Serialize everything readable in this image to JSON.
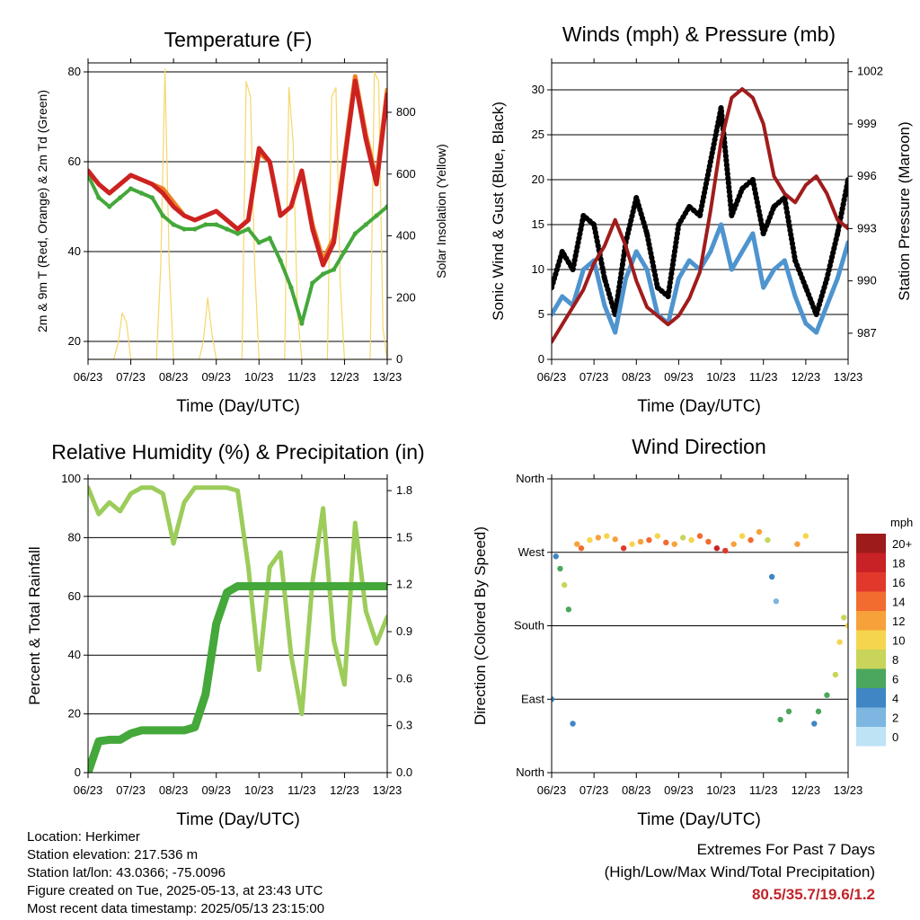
{
  "chart_data": [
    {
      "id": "temperature",
      "type": "line",
      "title": "Temperature (F)",
      "xlabel": "Time (Day/UTC)",
      "ylabel": "2m & 9m T (Red, Orange) & 2m Td (Green)",
      "ylabel_right": "Solar Insolation (Yellow)",
      "x_ticks": [
        "06/23",
        "07/23",
        "08/23",
        "09/23",
        "10/23",
        "11/23",
        "12/23",
        "13/23"
      ],
      "ylim": [
        16,
        82
      ],
      "yticks": [
        20,
        40,
        60,
        80
      ],
      "ylim_right": [
        0,
        960
      ],
      "yticks_right": [
        0,
        200,
        400,
        600,
        800
      ],
      "x": [
        6.0,
        6.25,
        6.5,
        6.75,
        7.0,
        7.25,
        7.5,
        7.75,
        8.0,
        8.25,
        8.5,
        8.75,
        9.0,
        9.25,
        9.5,
        9.75,
        10.0,
        10.25,
        10.5,
        10.75,
        11.0,
        11.25,
        11.5,
        11.75,
        12.0,
        12.25,
        12.5,
        12.75,
        13.0
      ],
      "series": [
        {
          "name": "2m T",
          "color": "#cc2222",
          "values": [
            58,
            55,
            53,
            55,
            57,
            56,
            55,
            53,
            50,
            48,
            47,
            48,
            49,
            47,
            45,
            47,
            63,
            60,
            48,
            50,
            58,
            45,
            37,
            42,
            60,
            78,
            65,
            55,
            75
          ]
        },
        {
          "name": "9m T",
          "color": "#f07f20",
          "values": [
            58,
            55,
            53,
            55,
            57,
            56,
            55,
            54,
            51,
            48,
            47,
            48,
            49,
            47,
            45,
            47,
            62,
            60,
            48,
            50,
            58,
            46,
            38,
            43,
            61,
            79,
            66,
            56,
            76
          ]
        },
        {
          "name": "2m Td",
          "color": "#44a83a",
          "values": [
            57,
            52,
            50,
            52,
            54,
            53,
            52,
            48,
            46,
            45,
            45,
            46,
            46,
            45,
            44,
            45,
            42,
            43,
            38,
            32,
            24,
            33,
            35,
            36,
            40,
            44,
            46,
            48,
            50
          ]
        },
        {
          "name": "Solar Insolation",
          "color": "#f5d76b",
          "axis": "right",
          "x": [
            6.0,
            6.1,
            6.2,
            6.3,
            6.4,
            6.5,
            6.6,
            6.7,
            6.8,
            6.9,
            7.0,
            7.1,
            7.2,
            7.3,
            7.4,
            7.5,
            7.6,
            7.7,
            7.8,
            7.9,
            8.0,
            8.1,
            8.2,
            8.3,
            8.4,
            8.5,
            8.6,
            8.7,
            8.8,
            8.9,
            9.0,
            9.1,
            9.2,
            9.3,
            9.4,
            9.5,
            9.6,
            9.7,
            9.8,
            9.9,
            10.0,
            10.1,
            10.2,
            10.3,
            10.4,
            10.5,
            10.6,
            10.7,
            10.8,
            10.9,
            11.0,
            11.1,
            11.2,
            11.3,
            11.4,
            11.5,
            11.6,
            11.7,
            11.8,
            11.9,
            12.0,
            12.1,
            12.2,
            12.3,
            12.4,
            12.5,
            12.6,
            12.7,
            12.8,
            12.9,
            13.0
          ],
          "values": [
            0,
            0,
            0,
            0,
            0,
            0,
            0,
            50,
            150,
            120,
            0,
            0,
            0,
            0,
            0,
            0,
            0,
            300,
            940,
            300,
            0,
            0,
            0,
            0,
            0,
            0,
            0,
            60,
            200,
            80,
            0,
            0,
            0,
            0,
            0,
            0,
            0,
            900,
            850,
            300,
            0,
            0,
            0,
            0,
            0,
            0,
            0,
            880,
            700,
            150,
            0,
            0,
            0,
            0,
            0,
            0,
            0,
            850,
            880,
            250,
            0,
            0,
            0,
            0,
            0,
            0,
            0,
            930,
            900,
            100,
            0
          ]
        }
      ]
    },
    {
      "id": "winds",
      "type": "line",
      "title": "Winds (mph) & Pressure (mb)",
      "xlabel": "Time (Day/UTC)",
      "ylabel": "Sonic Wind & Gust (Blue, Black)",
      "ylabel_right": "Station Pressure (Maroon)",
      "x_ticks": [
        "06/23",
        "07/23",
        "08/23",
        "09/23",
        "10/23",
        "11/23",
        "12/23",
        "13/23"
      ],
      "ylim": [
        0,
        33
      ],
      "yticks": [
        0,
        5,
        10,
        15,
        20,
        25,
        30
      ],
      "ylim_right": [
        985.5,
        1002.5
      ],
      "yticks_right": [
        987,
        990,
        993,
        996,
        999,
        1002
      ],
      "x": [
        6.0,
        6.25,
        6.5,
        6.75,
        7.0,
        7.25,
        7.5,
        7.75,
        8.0,
        8.25,
        8.5,
        8.75,
        9.0,
        9.25,
        9.5,
        9.75,
        10.0,
        10.25,
        10.5,
        10.75,
        11.0,
        11.25,
        11.5,
        11.75,
        12.0,
        12.25,
        12.5,
        12.75,
        13.0
      ],
      "series": [
        {
          "name": "Sonic Wind",
          "color": "#4e94cf",
          "values": [
            5,
            7,
            6,
            10,
            11,
            6,
            3,
            9,
            12,
            10,
            5,
            4,
            9,
            11,
            10,
            12,
            15,
            10,
            12,
            14,
            8,
            10,
            11,
            7,
            4,
            3,
            6,
            9,
            13
          ]
        },
        {
          "name": "Gust",
          "color": "#000000",
          "values": [
            8,
            12,
            10,
            16,
            15,
            9,
            5,
            13,
            18,
            14,
            8,
            7,
            15,
            17,
            16,
            22,
            28,
            16,
            19,
            20,
            14,
            17,
            18,
            11,
            8,
            5,
            9,
            14,
            20
          ]
        },
        {
          "name": "Station Pressure",
          "color": "#a01c1c",
          "axis": "right",
          "values": [
            986.5,
            987.5,
            988.5,
            989.5,
            991,
            992,
            993.5,
            992,
            990,
            988.5,
            988,
            987.5,
            988,
            989,
            990.5,
            994,
            998,
            1000.5,
            1001,
            1000.5,
            999,
            996,
            995,
            994.5,
            995.5,
            996,
            995,
            993.5,
            993
          ]
        }
      ]
    },
    {
      "id": "humidity",
      "type": "line",
      "title": "Relative Humidity (%) & Precipitation (in)",
      "xlabel": "Time (Day/UTC)",
      "ylabel": "Percent & Total Rainfall",
      "x_ticks": [
        "06/23",
        "07/23",
        "08/23",
        "09/23",
        "10/23",
        "11/23",
        "12/23",
        "13/23"
      ],
      "ylim": [
        0,
        100
      ],
      "yticks": [
        0,
        20,
        40,
        60,
        80,
        100
      ],
      "ylim_right": [
        0,
        1.875
      ],
      "yticks_right": [
        "0.0",
        "0.3",
        "0.6",
        "0.9",
        "1.2",
        "1.5",
        "1.8"
      ],
      "x": [
        6.0,
        6.25,
        6.5,
        6.75,
        7.0,
        7.25,
        7.5,
        7.75,
        8.0,
        8.25,
        8.5,
        8.75,
        9.0,
        9.25,
        9.5,
        9.75,
        10.0,
        10.25,
        10.5,
        10.75,
        11.0,
        11.25,
        11.5,
        11.75,
        12.0,
        12.25,
        12.5,
        12.75,
        13.0
      ],
      "series": [
        {
          "name": "Relative Humidity",
          "color": "#9ccc5a",
          "values": [
            97,
            88,
            92,
            89,
            95,
            97,
            97,
            95,
            78,
            92,
            97,
            97,
            97,
            97,
            96,
            70,
            35,
            70,
            75,
            40,
            20,
            65,
            90,
            45,
            30,
            85,
            55,
            44,
            53
          ]
        },
        {
          "name": "Total Precipitation",
          "color": "#44a83a",
          "axis": "right",
          "values": [
            0.0,
            0.2,
            0.21,
            0.21,
            0.25,
            0.27,
            0.27,
            0.27,
            0.27,
            0.27,
            0.29,
            0.5,
            0.95,
            1.15,
            1.19,
            1.19,
            1.19,
            1.19,
            1.19,
            1.19,
            1.19,
            1.19,
            1.19,
            1.19,
            1.19,
            1.19,
            1.19,
            1.19,
            1.19
          ]
        }
      ]
    },
    {
      "id": "direction",
      "type": "scatter",
      "title": "Wind Direction",
      "xlabel": "Time (Day/UTC)",
      "ylabel": "Direction (Colored By Speed)",
      "x_ticks": [
        "06/23",
        "07/23",
        "08/23",
        "09/23",
        "10/23",
        "11/23",
        "12/23",
        "13/23"
      ],
      "y_ticks": [
        "North",
        "East",
        "South",
        "West",
        "North"
      ],
      "ylim": [
        0,
        360
      ],
      "legend_title": "mph",
      "legend_labels": [
        "20+",
        "18",
        "16",
        "14",
        "12",
        "10",
        "8",
        "6",
        "4",
        "2",
        "0"
      ],
      "legend_colors": [
        "#9e1b1b",
        "#c82126",
        "#e0392c",
        "#f26b2f",
        "#f7a13b",
        "#f5d54d",
        "#c8d55a",
        "#4aa75d",
        "#3f87c4",
        "#7db6e0",
        "#bde3f5"
      ],
      "x": [
        6.0,
        6.1,
        6.2,
        6.3,
        6.4,
        6.5,
        6.6,
        6.7,
        6.9,
        7.1,
        7.3,
        7.5,
        7.7,
        7.9,
        8.1,
        8.3,
        8.5,
        8.7,
        8.9,
        9.1,
        9.3,
        9.5,
        9.7,
        9.9,
        10.1,
        10.3,
        10.5,
        10.7,
        10.9,
        11.1,
        11.2,
        11.3,
        11.4,
        11.6,
        11.8,
        12.0,
        12.2,
        12.3,
        12.5,
        12.7,
        12.8,
        12.9,
        13.0
      ],
      "values": [
        90,
        265,
        250,
        230,
        200,
        60,
        280,
        275,
        285,
        288,
        290,
        286,
        275,
        280,
        283,
        285,
        290,
        282,
        280,
        288,
        285,
        290,
        283,
        275,
        272,
        280,
        290,
        285,
        295,
        285,
        240,
        210,
        65,
        75,
        280,
        290,
        60,
        75,
        95,
        120,
        160,
        190,
        180
      ],
      "speeds": [
        3,
        4,
        6,
        8,
        6,
        3,
        12,
        14,
        10,
        12,
        9,
        11,
        16,
        10,
        12,
        14,
        9,
        13,
        11,
        8,
        10,
        13,
        14,
        18,
        16,
        12,
        10,
        14,
        12,
        8,
        4,
        2,
        5,
        6,
        12,
        10,
        4,
        6,
        5,
        8,
        10,
        7,
        9
      ]
    }
  ],
  "footer": {
    "location": "Location: Herkimer",
    "elevation": "Station elevation: 217.536 m",
    "latlon": "Station lat/lon: 43.0366; -75.0096",
    "created": "Figure created on Tue, 2025-05-13, at 23:43 UTC",
    "recent": "Most recent data timestamp: 2025/05/13 23:15:00"
  },
  "extremes": {
    "title": "Extremes For Past 7 Days",
    "subtitle": "(High/Low/Max Wind/Total Precipitation)",
    "value": "80.5/35.7/19.6/1.2"
  }
}
